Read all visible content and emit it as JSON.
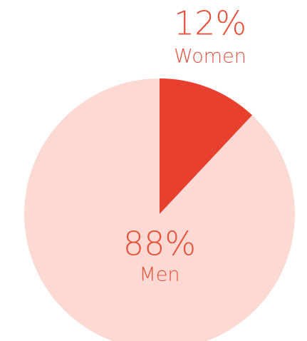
{
  "chart_data": {
    "type": "pie",
    "categories": [
      "Women",
      "Men"
    ],
    "values": [
      12,
      88
    ],
    "value_labels": [
      "12%",
      "88%"
    ],
    "colors": [
      "#e8402e",
      "#fcd9d3"
    ],
    "label_color": "#e8503a"
  }
}
